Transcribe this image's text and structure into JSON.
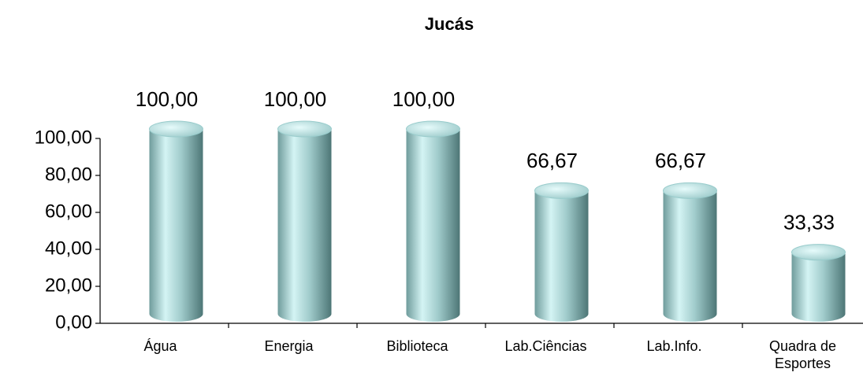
{
  "chart_data": {
    "type": "bar",
    "title": "Jucás",
    "categories": [
      "Água",
      "Energia",
      "Biblioteca",
      "Lab.Ciências",
      "Lab.Info.",
      "Quadra de Esportes"
    ],
    "values": [
      100,
      100,
      100,
      66.67,
      66.67,
      33.33
    ],
    "value_labels": [
      "100,00",
      "100,00",
      "100,00",
      "66,67",
      "66,67",
      "33,33"
    ],
    "color": "#99cccc",
    "ylim": [
      0,
      100
    ],
    "yticks": [
      {
        "value": 0,
        "label": "0,00"
      },
      {
        "value": 20,
        "label": "20,00"
      },
      {
        "value": 40,
        "label": "40,00"
      },
      {
        "value": 60,
        "label": "60,00"
      },
      {
        "value": 80,
        "label": "80,00"
      },
      {
        "value": 100,
        "label": "100,00"
      }
    ],
    "grid": false
  }
}
